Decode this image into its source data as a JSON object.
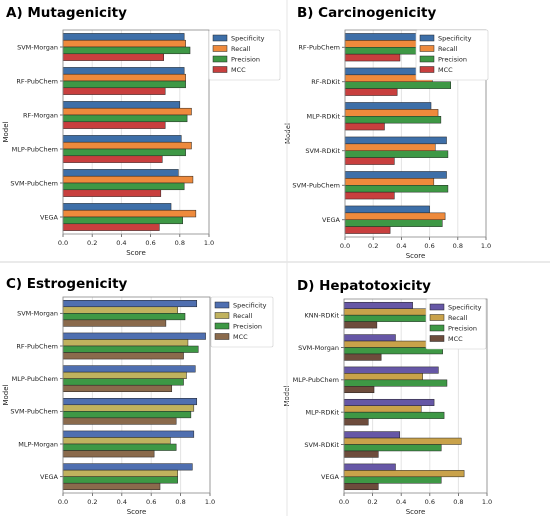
{
  "chart_data": [
    {
      "type": "bar",
      "orientation": "horizontal",
      "title": "A) Mutagenicity",
      "xlabel": "Score",
      "ylabel": "Model",
      "xlim": [
        0,
        1
      ],
      "xticks": [
        "0.0",
        "0.2",
        "0.4",
        "0.6",
        "0.8",
        "1.0"
      ],
      "grid": true,
      "legend_position": "top-right",
      "categories": [
        "SVM-Morgan",
        "RF-PubChem",
        "RF-Morgan",
        "MLP-PubChem",
        "SVM-PubChem",
        "VEGA"
      ],
      "series": [
        {
          "name": "Specificity",
          "color": "#3e6fa8",
          "values": [
            0.83,
            0.83,
            0.8,
            0.81,
            0.79,
            0.74
          ]
        },
        {
          "name": "Recall",
          "color": "#ee8a3c",
          "values": [
            0.84,
            0.84,
            0.88,
            0.88,
            0.89,
            0.91
          ]
        },
        {
          "name": "Precision",
          "color": "#3e9845",
          "values": [
            0.87,
            0.84,
            0.85,
            0.84,
            0.83,
            0.82
          ]
        },
        {
          "name": "MCC",
          "color": "#c83f3e",
          "values": [
            0.69,
            0.7,
            0.7,
            0.68,
            0.67,
            0.66
          ]
        }
      ]
    },
    {
      "type": "bar",
      "orientation": "horizontal",
      "title": "B) Carcinogenicity",
      "xlabel": "Score",
      "ylabel": "Model",
      "xlim": [
        0,
        1
      ],
      "xticks": [
        "0.0",
        "0.2",
        "0.4",
        "0.6",
        "0.8",
        "1.0"
      ],
      "grid": true,
      "legend_position": "top-right",
      "categories": [
        "RF-PubChem",
        "RF-RDKit",
        "MLP-RDKit",
        "SVM-RDKit",
        "SVM-PubChem",
        "VEGA"
      ],
      "series": [
        {
          "name": "Specificity",
          "color": "#3e6fa8",
          "values": [
            0.67,
            0.75,
            0.61,
            0.72,
            0.72,
            0.6
          ]
        },
        {
          "name": "Recall",
          "color": "#ee8a3c",
          "values": [
            0.71,
            0.62,
            0.66,
            0.64,
            0.63,
            0.71
          ]
        },
        {
          "name": "Precision",
          "color": "#3e9845",
          "values": [
            0.72,
            0.75,
            0.68,
            0.73,
            0.73,
            0.69
          ]
        },
        {
          "name": "MCC",
          "color": "#c83f3e",
          "values": [
            0.39,
            0.37,
            0.28,
            0.35,
            0.35,
            0.32
          ]
        }
      ]
    },
    {
      "type": "bar",
      "orientation": "horizontal",
      "title": "C) Estrogenicity",
      "xlabel": "Score",
      "ylabel": "Model",
      "xlim": [
        0,
        1
      ],
      "xticks": [
        "0.0",
        "0.2",
        "0.4",
        "0.6",
        "0.8",
        "1.0"
      ],
      "grid": true,
      "legend_position": "top-right",
      "categories": [
        "SVM-Morgan",
        "RF-PubChem",
        "MLP-PubChem",
        "SVM-PubChem",
        "MLP-Morgan",
        "VEGA"
      ],
      "series": [
        {
          "name": "Specificity",
          "color": "#4f6fb0",
          "values": [
            0.91,
            0.97,
            0.9,
            0.91,
            0.89,
            0.88
          ]
        },
        {
          "name": "Recall",
          "color": "#c0b25e",
          "values": [
            0.78,
            0.85,
            0.84,
            0.89,
            0.73,
            0.78
          ]
        },
        {
          "name": "Precision",
          "color": "#3e9845",
          "values": [
            0.83,
            0.92,
            0.82,
            0.87,
            0.77,
            0.78
          ]
        },
        {
          "name": "MCC",
          "color": "#8a6a4c",
          "values": [
            0.7,
            0.82,
            0.74,
            0.77,
            0.62,
            0.66
          ]
        }
      ]
    },
    {
      "type": "bar",
      "orientation": "horizontal",
      "title": "D) Hepatotoxicity",
      "xlabel": "Score",
      "ylabel": "Model",
      "xlim": [
        0,
        1
      ],
      "xticks": [
        "0.0",
        "0.2",
        "0.4",
        "0.6",
        "0.8",
        "1.0"
      ],
      "grid": true,
      "legend_position": "top-right",
      "categories": [
        "KNN-RDKit",
        "SVM-Morgan",
        "MLP-PubChem",
        "MLP-RDKit",
        "SVM-RDKit",
        "VEGA"
      ],
      "series": [
        {
          "name": "Specificity",
          "color": "#6657a6",
          "values": [
            0.48,
            0.36,
            0.66,
            0.63,
            0.39,
            0.36
          ]
        },
        {
          "name": "Recall",
          "color": "#c9a24a",
          "values": [
            0.73,
            0.85,
            0.55,
            0.54,
            0.82,
            0.84
          ]
        },
        {
          "name": "Precision",
          "color": "#3e9845",
          "values": [
            0.69,
            0.69,
            0.72,
            0.7,
            0.68,
            0.68
          ]
        },
        {
          "name": "MCC",
          "color": "#6d4c3c",
          "values": [
            0.23,
            0.26,
            0.21,
            0.17,
            0.24,
            0.24
          ]
        }
      ]
    }
  ]
}
